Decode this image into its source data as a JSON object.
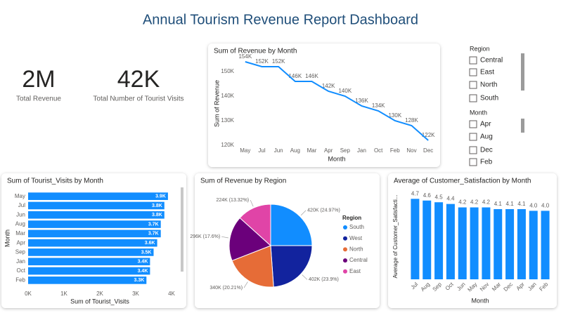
{
  "title": "Annual Tourism Revenue Report Dashboard",
  "kpis": [
    {
      "value": "2M",
      "label": "Total Revenue"
    },
    {
      "value": "42K",
      "label": "Total Number of Tourist Visits"
    }
  ],
  "slicers": [
    {
      "title": "Region",
      "items": [
        "Central",
        "East",
        "North",
        "South"
      ]
    },
    {
      "title": "Month",
      "items": [
        "Apr",
        "Aug",
        "Dec",
        "Feb"
      ]
    }
  ],
  "chart_data": [
    {
      "type": "line",
      "title": "Sum of Revenue by Month",
      "xlabel": "Month",
      "ylabel": "Sum of Revenue",
      "categories": [
        "May",
        "Jul",
        "Jun",
        "Aug",
        "Mar",
        "Apr",
        "Sep",
        "Jan",
        "Oct",
        "Feb",
        "Nov",
        "Dec"
      ],
      "values": [
        154000,
        152000,
        152000,
        146000,
        146000,
        142000,
        140000,
        136000,
        134000,
        130000,
        128000,
        122000
      ],
      "value_labels": [
        "154K",
        "152K",
        "152K",
        "146K",
        "146K",
        "142K",
        "140K",
        "136K",
        "134K",
        "130K",
        "128K",
        "122K"
      ],
      "color": "#118dff",
      "grid": false,
      "ylim": [
        118000,
        156000
      ],
      "yticks": [
        {
          "value": 120000,
          "label": "120K"
        },
        {
          "value": 130000,
          "label": "130K"
        },
        {
          "value": 140000,
          "label": "140K"
        },
        {
          "value": 150000,
          "label": "150K"
        }
      ]
    },
    {
      "type": "bar",
      "orientation": "horizontal",
      "title": "Sum of Tourist_Visits by Month",
      "xlabel": "Sum of Tourist_Visits",
      "ylabel": "Month",
      "categories": [
        "May",
        "Jul",
        "Jun",
        "Aug",
        "Mar",
        "Apr",
        "Sep",
        "Jan",
        "Oct",
        "Feb"
      ],
      "values": [
        3900,
        3800,
        3800,
        3700,
        3700,
        3600,
        3500,
        3400,
        3400,
        3300
      ],
      "value_labels": [
        "3.9K",
        "3.8K",
        "3.8K",
        "3.7K",
        "3.7K",
        "3.6K",
        "3.5K",
        "3.4K",
        "3.4K",
        "3.3K"
      ],
      "color": "#118dff",
      "xlim": [
        0,
        4000
      ],
      "xticks": [
        {
          "value": 0,
          "label": "0K"
        },
        {
          "value": 1000,
          "label": "1K"
        },
        {
          "value": 2000,
          "label": "2K"
        },
        {
          "value": 3000,
          "label": "3K"
        },
        {
          "value": 4000,
          "label": "4K"
        }
      ]
    },
    {
      "type": "pie",
      "title": "Sum of Revenue by Region",
      "legend_title": "Region",
      "categories": [
        "South",
        "West",
        "North",
        "Central",
        "East"
      ],
      "values": [
        420000,
        402000,
        340000,
        296000,
        224000
      ],
      "value_labels": [
        "420K (24.97%)",
        "402K (23.9%)",
        "340K (20.21%)",
        "296K (17.6%)",
        "224K (13.32%)"
      ],
      "colors": [
        "#118dff",
        "#12239e",
        "#e66c37",
        "#6b007b",
        "#e044a7"
      ]
    },
    {
      "type": "bar",
      "orientation": "vertical",
      "title": "Average of Customer_Satisfaction by Month",
      "xlabel": "Month",
      "ylabel": "Average of Customer_Satisfacti...",
      "categories": [
        "Jul",
        "Aug",
        "Sep",
        "Oct",
        "Jun",
        "May",
        "Nov",
        "Mar",
        "Dec",
        "Apr",
        "Jan",
        "Feb"
      ],
      "values": [
        4.7,
        4.6,
        4.5,
        4.4,
        4.2,
        4.2,
        4.2,
        4.1,
        4.1,
        4.1,
        4.0,
        4.0
      ],
      "value_labels": [
        "4.7",
        "4.6",
        "4.5",
        "4.4",
        "4.2",
        "4.2",
        "4.2",
        "4.1",
        "4.1",
        "4.1",
        "4.0",
        "4.0"
      ],
      "color": "#118dff",
      "ylim": [
        0,
        5
      ]
    }
  ]
}
